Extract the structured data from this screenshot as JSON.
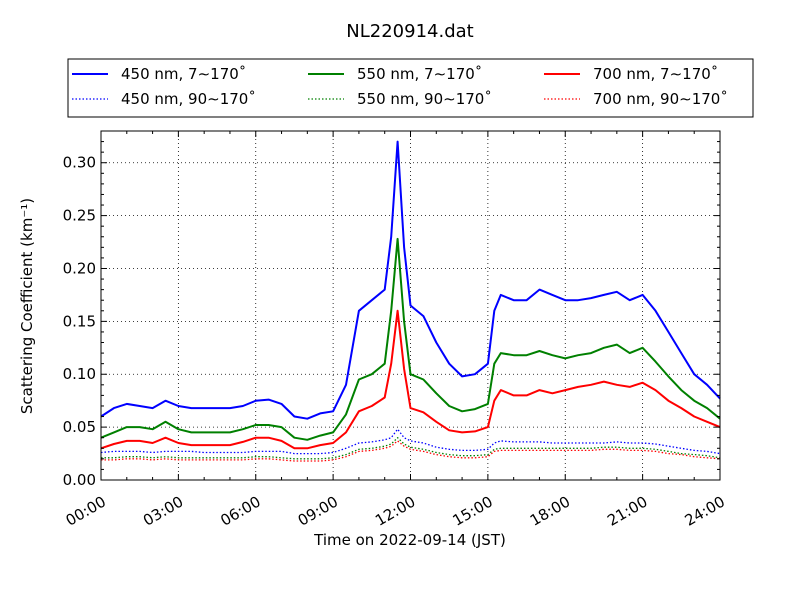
{
  "chart_data": {
    "type": "line",
    "title": "NL220914.dat",
    "xlabel": "Time on 2022-09-14 (JST)",
    "ylabel": "Scattering Coefficient (km⁻¹)",
    "x_unit": "hour",
    "xlim": [
      0,
      24
    ],
    "ylim": [
      0,
      0.33
    ],
    "xticks": [
      0,
      3,
      6,
      9,
      12,
      15,
      18,
      21,
      24
    ],
    "xtick_labels": [
      "00:00",
      "03:00",
      "06:00",
      "09:00",
      "12:00",
      "15:00",
      "18:00",
      "21:00",
      "24:00"
    ],
    "yticks": [
      0.0,
      0.05,
      0.1,
      0.15,
      0.2,
      0.25,
      0.3
    ],
    "ytick_labels": [
      "0.00",
      "0.05",
      "0.10",
      "0.15",
      "0.20",
      "0.25",
      "0.30"
    ],
    "grid": true,
    "legend_position": "top",
    "x": [
      0,
      0.5,
      1,
      1.5,
      2,
      2.5,
      3,
      3.5,
      4,
      4.5,
      5,
      5.5,
      6,
      6.5,
      7,
      7.5,
      8,
      8.5,
      9,
      9.5,
      10,
      10.5,
      11,
      11.25,
      11.5,
      11.75,
      12,
      12.5,
      13,
      13.5,
      14,
      14.5,
      15,
      15.25,
      15.5,
      16,
      16.5,
      17,
      17.5,
      18,
      18.5,
      19,
      19.5,
      20,
      20.5,
      21,
      21.5,
      22,
      22.5,
      23,
      23.5,
      24
    ],
    "series": [
      {
        "name": "450 nm, 7∼170˚",
        "color": "#0000ff",
        "style": "solid",
        "values": [
          0.06,
          0.068,
          0.072,
          0.07,
          0.068,
          0.075,
          0.07,
          0.068,
          0.068,
          0.068,
          0.068,
          0.07,
          0.075,
          0.076,
          0.072,
          0.06,
          0.058,
          0.063,
          0.065,
          0.09,
          0.16,
          0.17,
          0.18,
          0.23,
          0.32,
          0.22,
          0.165,
          0.155,
          0.13,
          0.11,
          0.098,
          0.1,
          0.11,
          0.16,
          0.175,
          0.17,
          0.17,
          0.18,
          0.175,
          0.17,
          0.17,
          0.172,
          0.175,
          0.178,
          0.17,
          0.175,
          0.16,
          0.14,
          0.12,
          0.1,
          0.09,
          0.077
        ]
      },
      {
        "name": "450 nm, 90∼170˚",
        "color": "#0000ff",
        "style": "dotted",
        "values": [
          0.026,
          0.027,
          0.027,
          0.027,
          0.026,
          0.027,
          0.027,
          0.027,
          0.026,
          0.026,
          0.026,
          0.026,
          0.027,
          0.027,
          0.027,
          0.025,
          0.025,
          0.025,
          0.026,
          0.03,
          0.035,
          0.036,
          0.038,
          0.04,
          0.048,
          0.04,
          0.037,
          0.035,
          0.031,
          0.029,
          0.028,
          0.028,
          0.029,
          0.035,
          0.037,
          0.036,
          0.036,
          0.036,
          0.035,
          0.035,
          0.035,
          0.035,
          0.035,
          0.036,
          0.035,
          0.035,
          0.034,
          0.032,
          0.03,
          0.028,
          0.027,
          0.025
        ]
      },
      {
        "name": "550 nm, 7∼170˚",
        "color": "#008000",
        "style": "solid",
        "values": [
          0.04,
          0.045,
          0.05,
          0.05,
          0.048,
          0.055,
          0.048,
          0.045,
          0.045,
          0.045,
          0.045,
          0.048,
          0.052,
          0.052,
          0.05,
          0.04,
          0.038,
          0.042,
          0.045,
          0.062,
          0.095,
          0.1,
          0.11,
          0.16,
          0.228,
          0.15,
          0.1,
          0.095,
          0.082,
          0.07,
          0.065,
          0.067,
          0.072,
          0.11,
          0.12,
          0.118,
          0.118,
          0.122,
          0.118,
          0.115,
          0.118,
          0.12,
          0.125,
          0.128,
          0.12,
          0.125,
          0.112,
          0.098,
          0.085,
          0.075,
          0.068,
          0.058
        ]
      },
      {
        "name": "550 nm, 90∼170˚",
        "color": "#008000",
        "style": "dotted",
        "values": [
          0.021,
          0.021,
          0.022,
          0.022,
          0.021,
          0.022,
          0.021,
          0.021,
          0.021,
          0.021,
          0.021,
          0.021,
          0.022,
          0.022,
          0.021,
          0.02,
          0.02,
          0.02,
          0.021,
          0.024,
          0.029,
          0.03,
          0.032,
          0.034,
          0.04,
          0.034,
          0.031,
          0.029,
          0.026,
          0.024,
          0.023,
          0.023,
          0.024,
          0.029,
          0.03,
          0.03,
          0.03,
          0.03,
          0.03,
          0.03,
          0.03,
          0.03,
          0.031,
          0.031,
          0.03,
          0.03,
          0.029,
          0.027,
          0.025,
          0.024,
          0.023,
          0.021
        ]
      },
      {
        "name": "700 nm, 7∼170˚",
        "color": "#ff0000",
        "style": "solid",
        "values": [
          0.03,
          0.034,
          0.037,
          0.037,
          0.035,
          0.04,
          0.035,
          0.033,
          0.033,
          0.033,
          0.033,
          0.036,
          0.04,
          0.04,
          0.037,
          0.03,
          0.03,
          0.033,
          0.035,
          0.045,
          0.065,
          0.07,
          0.078,
          0.11,
          0.16,
          0.105,
          0.068,
          0.064,
          0.055,
          0.047,
          0.045,
          0.046,
          0.05,
          0.075,
          0.085,
          0.08,
          0.08,
          0.085,
          0.082,
          0.085,
          0.088,
          0.09,
          0.093,
          0.09,
          0.088,
          0.092,
          0.085,
          0.075,
          0.068,
          0.06,
          0.055,
          0.05
        ]
      },
      {
        "name": "700 nm, 90∼170˚",
        "color": "#ff0000",
        "style": "dotted",
        "values": [
          0.019,
          0.019,
          0.02,
          0.02,
          0.019,
          0.02,
          0.019,
          0.019,
          0.019,
          0.019,
          0.019,
          0.019,
          0.02,
          0.02,
          0.019,
          0.018,
          0.018,
          0.018,
          0.019,
          0.022,
          0.027,
          0.028,
          0.03,
          0.032,
          0.037,
          0.032,
          0.029,
          0.027,
          0.024,
          0.022,
          0.021,
          0.021,
          0.022,
          0.027,
          0.028,
          0.028,
          0.028,
          0.028,
          0.028,
          0.028,
          0.028,
          0.028,
          0.029,
          0.029,
          0.028,
          0.028,
          0.027,
          0.025,
          0.024,
          0.022,
          0.021,
          0.02
        ]
      }
    ]
  }
}
